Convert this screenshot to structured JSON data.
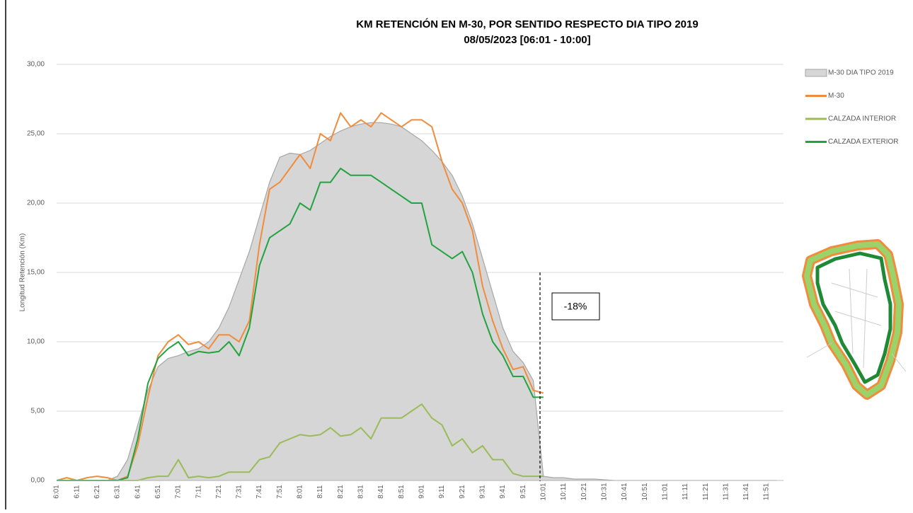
{
  "chart_data": {
    "type": "line",
    "title": "KM RETENCIÓN EN M-30, POR SENTIDO RESPECTO DIA TIPO 2019",
    "subtitle": "08/05/2023    [06:01 - 10:00]",
    "y_label": "Longitud Retención (Km)",
    "annotation": "-18%",
    "categories": [
      "6:01",
      null,
      "6:11",
      null,
      "6:21",
      null,
      "6:31",
      null,
      "6:41",
      null,
      "6:51",
      null,
      "7:01",
      null,
      "7:11",
      null,
      "7:21",
      null,
      "7:31",
      null,
      "7:41",
      null,
      "7:51",
      null,
      "8:01",
      null,
      "8:11",
      null,
      "8:21",
      null,
      "8:31",
      null,
      "8:41",
      null,
      "8:51",
      null,
      "9:01",
      null,
      "9:11",
      null,
      "9:21",
      null,
      "9:31",
      null,
      "9:41",
      null,
      "9:51",
      null,
      "10:01",
      null,
      "10:11",
      null,
      "10:21",
      null,
      "10:31",
      null,
      "10:41",
      null,
      "10:51",
      null,
      "11:01",
      null,
      "11:11",
      null,
      "11:21",
      null,
      "11:31",
      null,
      "11:41",
      null,
      "11:51",
      null
    ],
    "ylim": [
      0,
      30
    ],
    "yticks": [
      {
        "value": 0,
        "label": "0,00"
      },
      {
        "value": 5,
        "label": "5,00"
      },
      {
        "value": 10,
        "label": "10,00"
      },
      {
        "value": 15,
        "label": "15,00"
      },
      {
        "value": 20,
        "label": "20,00"
      },
      {
        "value": 25,
        "label": "25,00"
      },
      {
        "value": 30,
        "label": "30,00"
      }
    ],
    "grid": true,
    "legend": "right",
    "series": [
      {
        "name": "M-30 DIA TIPO 2019",
        "color": "#d6d6d6",
        "fill": true,
        "values": [
          0,
          0,
          0,
          0,
          0,
          0,
          0.3,
          1.5,
          4,
          6.5,
          8.2,
          8.8,
          9,
          9.3,
          9.5,
          10,
          11,
          12.5,
          14.5,
          16.5,
          19,
          21.5,
          23.3,
          23.6,
          23.5,
          23.8,
          24.3,
          24.8,
          25.2,
          25.5,
          25.7,
          25.8,
          25.8,
          25.7,
          25.5,
          25,
          24.5,
          23.8,
          23,
          22,
          20.5,
          18.5,
          16,
          13.5,
          11,
          9.3,
          8.5,
          7.2,
          0.3,
          0.2,
          0.2,
          0.1,
          0.1,
          0.1,
          0.05,
          0,
          0,
          0,
          0,
          0,
          0,
          0,
          0,
          0,
          0,
          0,
          0,
          0,
          0,
          0,
          0,
          0
        ]
      },
      {
        "name": "M-30",
        "color": "#f08c3c",
        "values": [
          0,
          0.2,
          0,
          0.2,
          0.3,
          0.2,
          0,
          0.3,
          2.5,
          6,
          9,
          10,
          10.5,
          9.8,
          10,
          9.5,
          10.5,
          10.5,
          10,
          11.5,
          17,
          21,
          21.5,
          22.5,
          23.5,
          22.5,
          25,
          24.5,
          26.5,
          25.5,
          26,
          25.5,
          26.5,
          26,
          25.5,
          26,
          26,
          25.5,
          23,
          21,
          20,
          18,
          14,
          11.5,
          9.5,
          8,
          8.2,
          6.5,
          6.3,
          null,
          null,
          null,
          null,
          null,
          null,
          null,
          null,
          null,
          null,
          null,
          null,
          null,
          null,
          null,
          null,
          null,
          null,
          null,
          null,
          null,
          null,
          null
        ]
      },
      {
        "name": "CALZADA INTERIOR",
        "color": "#9bbb59",
        "values": [
          0,
          0,
          0,
          0,
          0,
          0,
          0,
          0,
          0,
          0.2,
          0.3,
          0.3,
          1.5,
          0.2,
          0.3,
          0.2,
          0.3,
          0.6,
          0.6,
          0.6,
          1.5,
          1.7,
          2.7,
          3,
          3.3,
          3.2,
          3.3,
          3.8,
          3.2,
          3.3,
          3.8,
          3,
          4.5,
          4.5,
          4.5,
          5,
          5.5,
          4.5,
          4,
          2.5,
          3,
          2,
          2.5,
          1.5,
          1.5,
          0.5,
          0.3,
          0.3,
          0.3,
          null,
          null,
          null,
          null,
          null,
          null,
          null,
          null,
          null,
          null,
          null,
          null,
          null,
          null,
          null,
          null,
          null,
          null,
          null,
          null,
          null,
          null,
          null
        ]
      },
      {
        "name": "CALZADA EXTERIOR",
        "color": "#22a33f",
        "values": [
          0,
          0,
          0,
          0,
          0,
          0,
          0,
          0.2,
          3,
          7,
          8.8,
          9.5,
          10,
          9,
          9.3,
          9.2,
          9.3,
          10,
          9,
          11,
          15.5,
          17.5,
          18,
          18.5,
          20,
          19.5,
          21.5,
          21.5,
          22.5,
          22,
          22,
          22,
          21.5,
          21,
          20.5,
          20,
          20,
          17,
          16.5,
          16,
          16.5,
          15,
          12,
          10,
          9,
          7.5,
          7.5,
          6,
          6,
          null,
          null,
          null,
          null,
          null,
          null,
          null,
          null,
          null,
          null,
          null,
          null,
          null,
          null,
          null,
          null,
          null,
          null,
          null,
          null,
          null,
          null,
          null
        ]
      }
    ]
  }
}
